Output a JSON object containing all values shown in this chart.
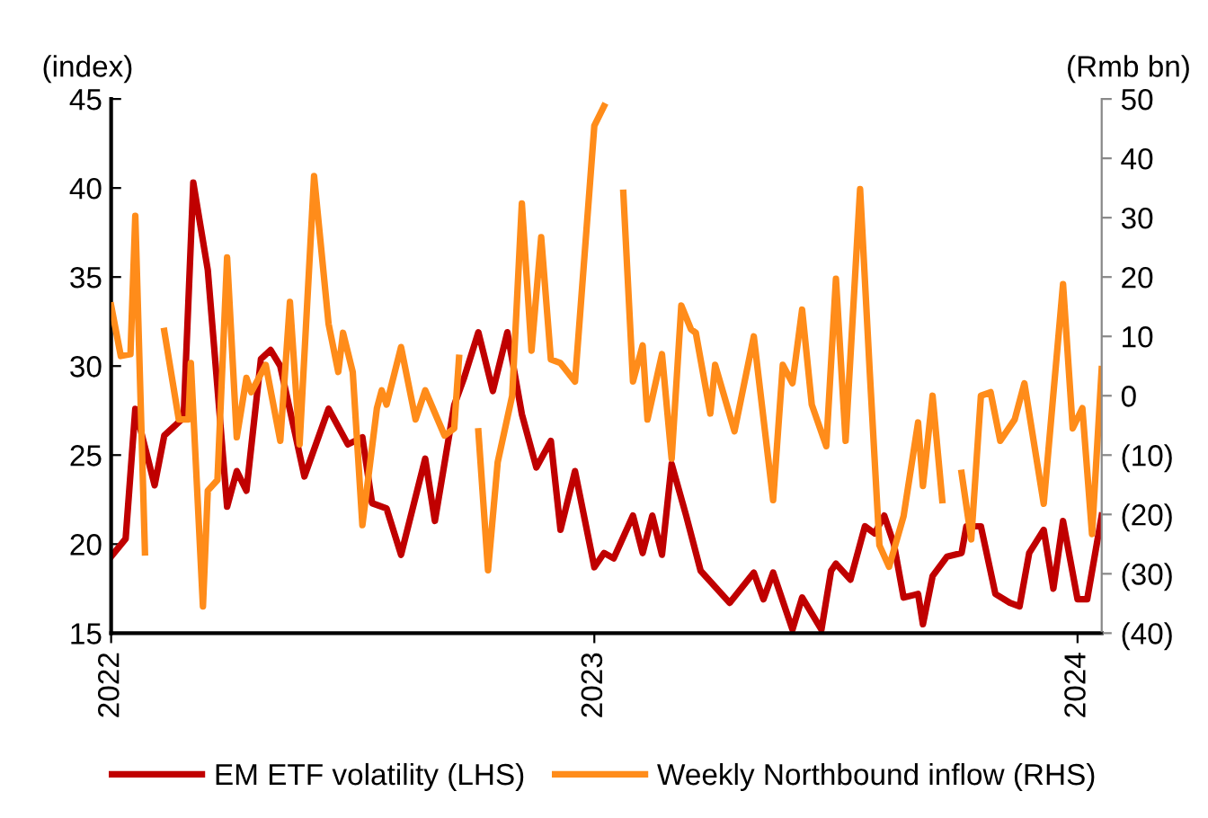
{
  "chart_data": {
    "type": "line",
    "ylabel": "(index)",
    "y2label": "(Rmb bn)",
    "xlim": [
      2022,
      2024.05
    ],
    "xticks": [
      2022,
      2023,
      2024
    ],
    "ylim": [
      15,
      45
    ],
    "yticks": [
      15,
      20,
      25,
      30,
      35,
      40,
      45
    ],
    "y2lim": [
      -40,
      50
    ],
    "y2ticks": [
      {
        "value": -40,
        "label": "(40)"
      },
      {
        "value": -30,
        "label": "(30)"
      },
      {
        "value": -20,
        "label": "(20)"
      },
      {
        "value": -10,
        "label": "(10)"
      },
      0,
      10,
      20,
      30,
      40,
      50
    ],
    "grid": false,
    "legend": "bottom",
    "marker": "none",
    "line_style": "solid",
    "series": [
      {
        "name": "EM ETF volatility (LHS)",
        "color": "#c00000",
        "x": [
          2022.0,
          2022.03,
          2022.05,
          2022.09,
          2022.11,
          2022.15,
          2022.17,
          2022.2,
          2022.22,
          2022.24,
          2022.26,
          2022.28,
          2022.31,
          2022.33,
          2022.35,
          2022.38,
          2022.4,
          2022.45,
          2022.49,
          2022.52,
          2022.54,
          2022.57,
          2022.6,
          2022.65,
          2022.67,
          2022.71,
          2022.73,
          2022.76,
          2022.79,
          2022.82,
          2022.85,
          2022.88,
          2022.91,
          2022.93,
          2022.96,
          2023.0,
          2023.02,
          2023.04,
          2023.08,
          2023.1,
          2023.12,
          2023.14,
          2023.16,
          2023.19,
          2023.22,
          2023.28,
          2023.33,
          2023.35,
          2023.37,
          2023.41,
          2023.43,
          2023.47,
          2023.49,
          2023.5,
          2023.53,
          2023.56,
          2023.58,
          2023.6,
          2023.62,
          2023.64,
          2023.67,
          2023.68,
          2023.7,
          2023.73,
          2023.76,
          2023.77,
          2023.8,
          2023.83,
          2023.86,
          2023.88,
          2023.9,
          2023.93,
          2023.95,
          2023.97,
          2024.0,
          2024.02,
          2024.05
        ],
        "values": [
          19.3,
          20.3,
          27.6,
          23.3,
          26.1,
          27.1,
          40.3,
          35.4,
          28.8,
          22.1,
          24.1,
          23,
          30.4,
          30.9,
          30,
          26.3,
          23.8,
          27.6,
          25.6,
          26,
          22.3,
          22,
          19.4,
          24.8,
          21.3,
          27.8,
          29.3,
          31.9,
          28.6,
          31.9,
          27.3,
          24.3,
          25.8,
          20.8,
          24.1,
          18.7,
          19.5,
          19.2,
          21.6,
          19.5,
          21.6,
          19.4,
          24.5,
          21.6,
          18.5,
          16.7,
          18.4,
          16.9,
          18.4,
          15.2,
          17,
          15.2,
          18.5,
          18.9,
          18,
          21,
          20.6,
          21.6,
          20,
          17,
          17.2,
          15.5,
          18.2,
          19.3,
          19.5,
          21,
          21,
          17.2,
          16.7,
          16.5,
          19.5,
          20.8,
          17.5,
          21.3,
          16.9,
          16.9,
          21.6
        ]
      },
      {
        "name": "Weekly Northbound inflow (RHS)",
        "color": "#ff8c1a",
        "axis": "y2",
        "x": [
          2022.0,
          2022.02,
          2022.04,
          2022.05,
          2022.07,
          2022.08,
          2022.11,
          2022.14,
          2022.16,
          2022.165,
          2022.19,
          2022.2,
          2022.22,
          2022.24,
          2022.26,
          2022.28,
          2022.29,
          2022.32,
          2022.35,
          2022.37,
          2022.39,
          2022.42,
          2022.45,
          2022.47,
          2022.48,
          2022.5,
          2022.52,
          2022.55,
          2022.56,
          2022.57,
          2022.6,
          2022.63,
          2022.65,
          2022.69,
          2022.71,
          2022.72,
          2022.735,
          2022.76,
          2022.78,
          2022.8,
          2022.83,
          2022.85,
          2022.87,
          2022.89,
          2022.91,
          2022.93,
          2022.96,
          2023.0,
          2023.02,
          2023.03,
          2023.06,
          2023.08,
          2023.1,
          2023.11,
          2023.14,
          2023.16,
          2023.18,
          2023.2,
          2023.21,
          2023.24,
          2023.25,
          2023.29,
          2023.33,
          2023.37,
          2023.39,
          2023.41,
          2023.43,
          2023.45,
          2023.48,
          2023.5,
          2023.52,
          2023.55,
          2023.57,
          2023.59,
          2023.61,
          2023.64,
          2023.67,
          2023.68,
          2023.7,
          2023.72,
          2023.73,
          2023.76,
          2023.78,
          2023.8,
          2023.82,
          2023.84,
          2023.87,
          2023.89,
          2023.93,
          2023.97,
          2023.99,
          2024.01,
          2024.03,
          2024.05
        ],
        "values": [
          15.2,
          6.7,
          7,
          30.3,
          -26.4,
          null,
          10.9,
          -4,
          -4,
          5.5,
          -35.5,
          -16,
          -14.2,
          23.3,
          -7,
          3,
          0.6,
          5.2,
          -7.6,
          15.8,
          -8.2,
          37,
          12.1,
          4,
          10.6,
          4,
          -21.8,
          -2.1,
          0.9,
          -1.5,
          8.2,
          -4,
          0.9,
          -6.7,
          -5.5,
          6.4,
          null,
          -6,
          -29.4,
          -11.2,
          0,
          32.4,
          7.6,
          26.7,
          6.1,
          5.5,
          2.4,
          45.5,
          48.8,
          null,
          34.2,
          2.4,
          8.5,
          -4,
          7,
          -10.6,
          15.2,
          11.2,
          10.6,
          -3,
          5.2,
          -6,
          10,
          -17.6,
          5.2,
          2.1,
          14.5,
          -1.5,
          -8.5,
          19.7,
          -7.6,
          34.8,
          4,
          -25.2,
          -28.8,
          -20.3,
          -4.5,
          -15.2,
          0,
          -17.6,
          null,
          -13,
          -24.2,
          0,
          0.6,
          -7.6,
          -4,
          2.1,
          -18.2,
          18.8,
          -5.5,
          -2.1,
          -23.3,
          4.5
        ]
      }
    ]
  }
}
